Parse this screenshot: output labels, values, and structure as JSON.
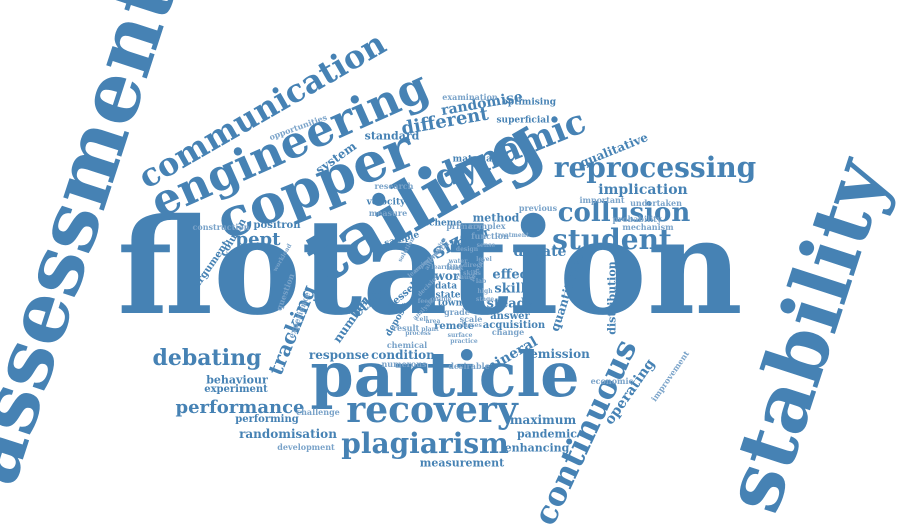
{
  "colors": {
    "primary": "#4682b4",
    "light": "#7aa3c9"
  },
  "words": [
    "flotation",
    "assessment",
    "stability",
    "tailing",
    "particle",
    "copper",
    "engineering",
    "communication",
    "dynamic",
    "reprocessing",
    "recovery",
    "student",
    "collusion",
    "continuous",
    "plagiarism",
    "debating",
    "pept",
    "tracking",
    "performance",
    "size",
    "randomisation",
    "different",
    "randomise",
    "implication",
    "debate",
    "qualitative",
    "system",
    "standard",
    "superficial",
    "examination",
    "optimising",
    "opportunities",
    "material",
    "velocity",
    "tracer",
    "method",
    "positron",
    "column",
    "argument",
    "scheme",
    "sample",
    "ethic",
    "vessel",
    "work",
    "effect",
    "skill",
    "steady",
    "data",
    "state",
    "town",
    "grade",
    "scale",
    "answer",
    "acquisition",
    "remote",
    "quantitative",
    "distribution",
    "operating",
    "mineral",
    "emission",
    "economic",
    "improvement",
    "maximum",
    "pandemic",
    "enhancing",
    "measurement",
    "development",
    "challenge",
    "performing",
    "experiment",
    "behaviour",
    "response",
    "condition",
    "numerous",
    "desirable",
    "chemical",
    "number",
    "deposit",
    "result",
    "construction",
    "undertaken",
    "mechanism",
    "probability",
    "important",
    "previous",
    "research",
    "measure",
    "complex",
    "function",
    "primary",
    "change",
    "fine",
    "question",
    "experience",
    "workload",
    "solution",
    "bank",
    "cause",
    "experimental",
    "water",
    "direct",
    "surface",
    "classes",
    "practice",
    "alternative",
    "provide",
    "treatment",
    "learning",
    "decision",
    "learn",
    "skills",
    "design",
    "sense",
    "cell",
    "area",
    "level",
    "analysis",
    "feed",
    "online",
    "lab",
    "high",
    "stage",
    "plant",
    "process"
  ]
}
